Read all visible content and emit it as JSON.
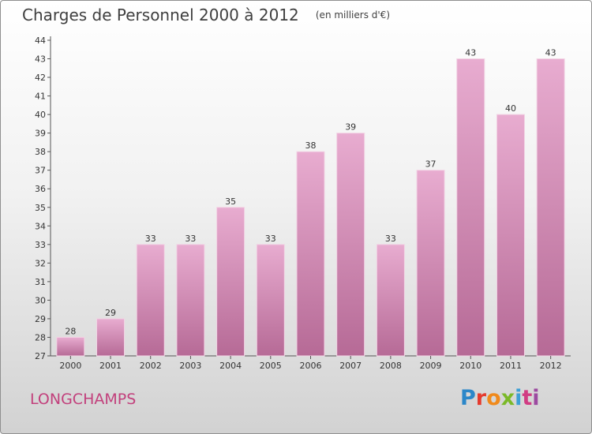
{
  "chart_data": {
    "type": "bar",
    "title": "Charges de Personnel 2000 à 2012",
    "subtitle": "(en milliers d'€)",
    "categories": [
      "2000",
      "2001",
      "2002",
      "2003",
      "2004",
      "2005",
      "2006",
      "2007",
      "2008",
      "2009",
      "2010",
      "2011",
      "2012"
    ],
    "values": [
      28,
      29,
      33,
      33,
      35,
      33,
      38,
      39,
      33,
      37,
      43,
      40,
      43
    ],
    "ylim": [
      27,
      44
    ],
    "yticks": [
      27,
      28,
      29,
      30,
      31,
      32,
      33,
      34,
      35,
      36,
      37,
      38,
      39,
      40,
      41,
      42,
      43,
      44
    ],
    "xlabel": "",
    "ylabel": "",
    "grid": false,
    "bar_color": "#d47fac",
    "bar_color_light": "#e8acd0",
    "bar_color_dark": "#b66a96"
  },
  "commune": "LONGCHAMPS",
  "logo": {
    "letters": [
      "P",
      "r",
      "o",
      "x",
      "i",
      "t",
      "i"
    ]
  }
}
